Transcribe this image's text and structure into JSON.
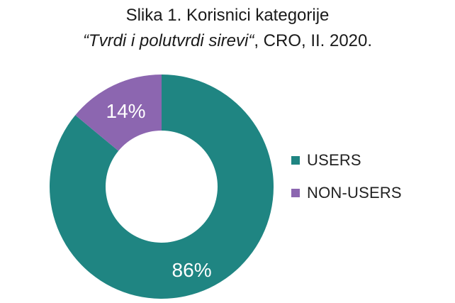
{
  "title": {
    "line1": "Slika 1. Korisnici kategorije",
    "line2_italic": "“Tvrdi i polutvrdi sirevi“",
    "line2_rest": ", CRO, II. 2020."
  },
  "colors": {
    "users": "#1f8582",
    "non_users": "#8c66b0",
    "label_text": "#ffffff"
  },
  "chart_data": {
    "type": "pie",
    "categories": [
      "USERS",
      "NON-USERS"
    ],
    "values": [
      86,
      14
    ],
    "data_labels": [
      "86%",
      "14%"
    ],
    "title": "Slika 1. Korisnici kategorije “Tvrdi i polutvrdi sirevi“, CRO, II. 2020.",
    "donut": true,
    "legend": "right"
  },
  "legend": {
    "items": [
      {
        "label": "USERS"
      },
      {
        "label": "NON-USERS"
      }
    ]
  }
}
